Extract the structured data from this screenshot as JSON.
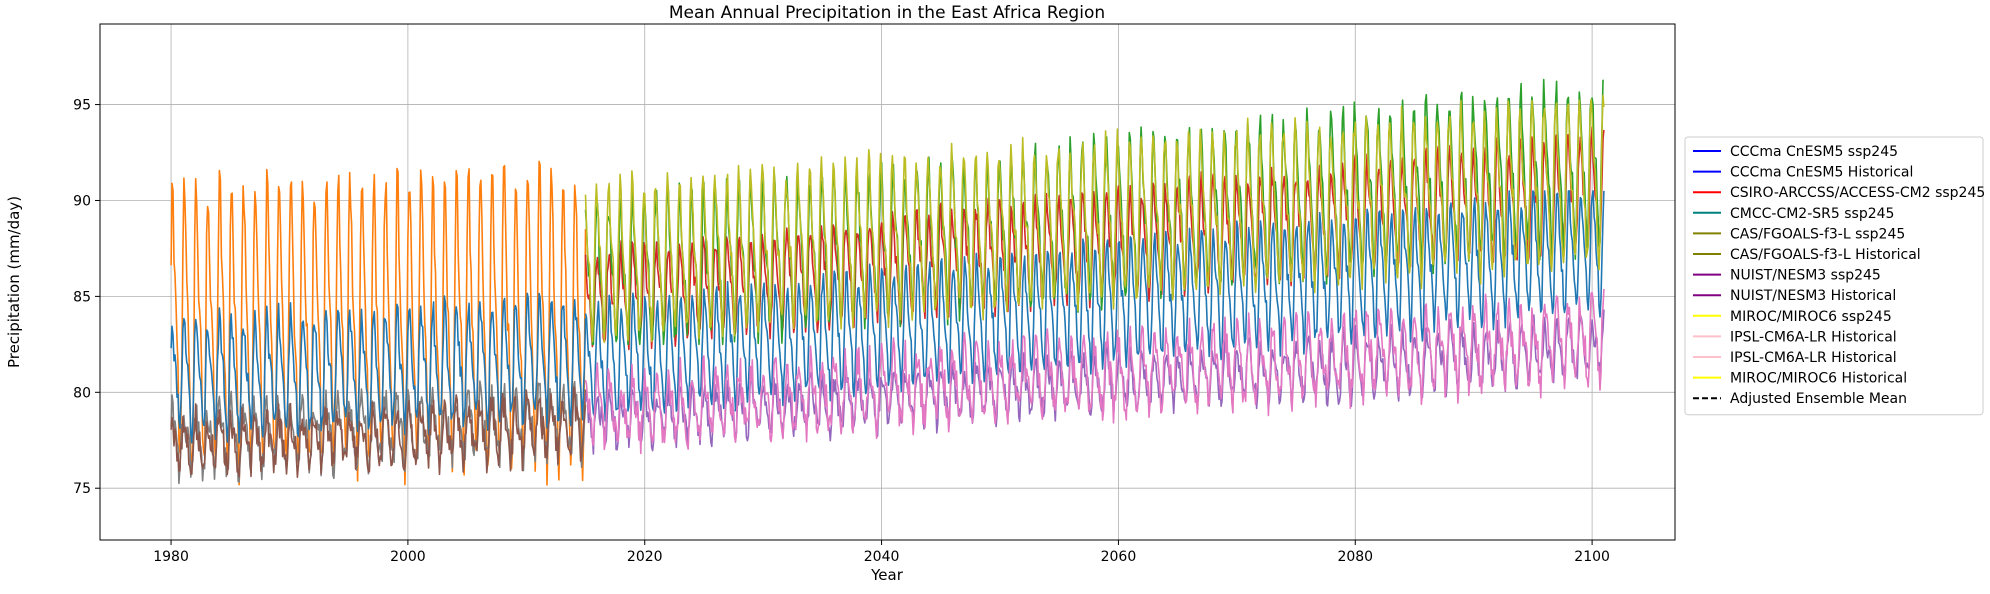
{
  "chart_data": {
    "type": "line",
    "title": "Mean Annual Precipitation in the East Africa Region",
    "xlabel": "Year",
    "ylabel": "Precipitation (mm/day)",
    "xlim": [
      1974,
      2107
    ],
    "ylim": [
      72.3,
      99.2
    ],
    "xticks": [
      1980,
      2000,
      2020,
      2040,
      2060,
      2080,
      2100
    ],
    "yticks": [
      75,
      80,
      85,
      90,
      95
    ],
    "xtick_labels": [
      "1980",
      "2000",
      "2020",
      "2040",
      "2060",
      "2080",
      "2100"
    ],
    "ytick_labels": [
      "75",
      "80",
      "85",
      "90",
      "95"
    ],
    "grid": true,
    "legend_position": "right, outside plot area",
    "legend": [
      {
        "label": "CCCma CnESM5 ssp245",
        "color": "#0000ff",
        "style": "solid"
      },
      {
        "label": "CCCma CnESM5 Historical",
        "color": "#0000ff",
        "style": "solid"
      },
      {
        "label": "CSIRO-ARCCSS/ACCESS-CM2 ssp245",
        "color": "#ff0000",
        "style": "solid"
      },
      {
        "label": "CMCC-CM2-SR5 ssp245",
        "color": "#008080",
        "style": "solid"
      },
      {
        "label": "CAS/FGOALS-f3-L ssp245",
        "color": "#808000",
        "style": "solid"
      },
      {
        "label": "CAS/FGOALS-f3-L Historical",
        "color": "#808000",
        "style": "solid"
      },
      {
        "label": "NUIST/NESM3 ssp245",
        "color": "#800080",
        "style": "solid"
      },
      {
        "label": "NUIST/NESM3 Historical",
        "color": "#800080",
        "style": "solid"
      },
      {
        "label": "MIROC/MIROC6 ssp245",
        "color": "#ffff00",
        "style": "solid"
      },
      {
        "label": "IPSL-CM6A-LR Historical",
        "color": "#ffc0cb",
        "style": "solid"
      },
      {
        "label": "IPSL-CM6A-LR Historical",
        "color": "#ffc0cb",
        "style": "solid"
      },
      {
        "label": "MIROC/MIROC6 Historical",
        "color": "#ffff00",
        "style": "solid"
      },
      {
        "label": "Adjusted Ensemble Mean",
        "color": "#000000",
        "style": "dashed"
      }
    ],
    "series": [
      {
        "color": "#ff7f0e",
        "x": [
          1980,
          2015
        ],
        "mean": [
          83.5,
          83.8
        ],
        "amplitude": [
          7.5,
          8.0
        ],
        "noise": 1.0,
        "min": 73.6,
        "max": 95.0
      },
      {
        "color": "#1f77b4",
        "x": [
          1980,
          2015
        ],
        "mean": [
          80.8,
          81.8
        ],
        "amplitude": [
          3.0,
          3.2
        ],
        "noise": 0.7,
        "min": 75.0,
        "max": 87.5
      },
      {
        "color": "#7f7f7f",
        "x": [
          1980,
          2015
        ],
        "mean": [
          77.5,
          78.5
        ],
        "amplitude": [
          1.6,
          1.8
        ],
        "noise": 0.9,
        "min": 74.5,
        "max": 81.5
      },
      {
        "color": "#8c564b",
        "x": [
          1980,
          2015
        ],
        "mean": [
          77.3,
          78.2
        ],
        "amplitude": [
          1.3,
          1.5
        ],
        "noise": 0.8,
        "min": 74.5,
        "max": 80.8
      },
      {
        "color": "#1f77b4",
        "x": [
          2015,
          2101
        ],
        "mean": [
          81.5,
          87.5
        ],
        "amplitude": [
          3.0,
          3.3
        ],
        "noise": 0.6,
        "min": 76.5,
        "max": 90.5
      },
      {
        "color": "#9467bd",
        "x": [
          2015,
          2101
        ],
        "mean": [
          78.5,
          82.3
        ],
        "amplitude": [
          1.2,
          1.6
        ],
        "noise": 0.7,
        "min": 76.5,
        "max": 86.0
      },
      {
        "color": "#e377c2",
        "x": [
          2015,
          2101
        ],
        "mean": [
          79.0,
          82.8
        ],
        "amplitude": [
          1.8,
          2.1
        ],
        "noise": 0.9,
        "min": 75.6,
        "max": 87.0
      },
      {
        "color": "#d62728",
        "x": [
          2015,
          2101
        ],
        "mean": [
          84.8,
          90.5
        ],
        "amplitude": [
          2.5,
          3.0
        ],
        "noise": 0.6,
        "min": 81.5,
        "max": 96.5
      },
      {
        "color": "#2ca02c",
        "x": [
          2015,
          2101
        ],
        "mean": [
          86.0,
          92.0
        ],
        "amplitude": [
          3.8,
          4.3
        ],
        "noise": 0.8,
        "min": 82.5,
        "max": 98.0
      },
      {
        "color": "#bcbd22",
        "x": [
          2015,
          2101
        ],
        "mean": [
          86.8,
          91.0
        ],
        "amplitude": [
          4.0,
          4.3
        ],
        "noise": 0.7,
        "min": 82.0,
        "max": 97.0
      }
    ]
  }
}
